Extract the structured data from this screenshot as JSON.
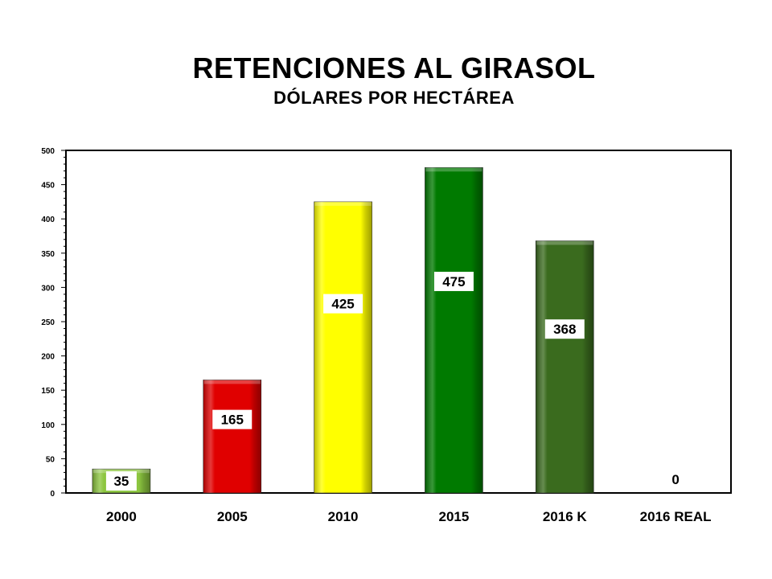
{
  "chart_data": {
    "type": "bar",
    "title": "RETENCIONES AL GIRASOL",
    "subtitle": "DÓLARES POR HECTÁREA",
    "xlabel": "",
    "ylabel": "",
    "ylim": [
      0,
      500
    ],
    "y_ticks": [
      0,
      50,
      100,
      150,
      200,
      250,
      300,
      350,
      400,
      450,
      500
    ],
    "grid": false,
    "legend": "none",
    "categories": [
      "2000",
      "2005",
      "2010",
      "2015",
      "2016 K",
      "2016 REAL"
    ],
    "values": [
      35,
      165,
      425,
      475,
      368,
      0
    ],
    "data_labels": [
      "35",
      "165",
      "425",
      "475",
      "368",
      "0"
    ],
    "colors": [
      "#8CC63F",
      "#E00000",
      "#FFFF00",
      "#007A00",
      "#3A6B1E",
      "#FFFFFF"
    ]
  }
}
